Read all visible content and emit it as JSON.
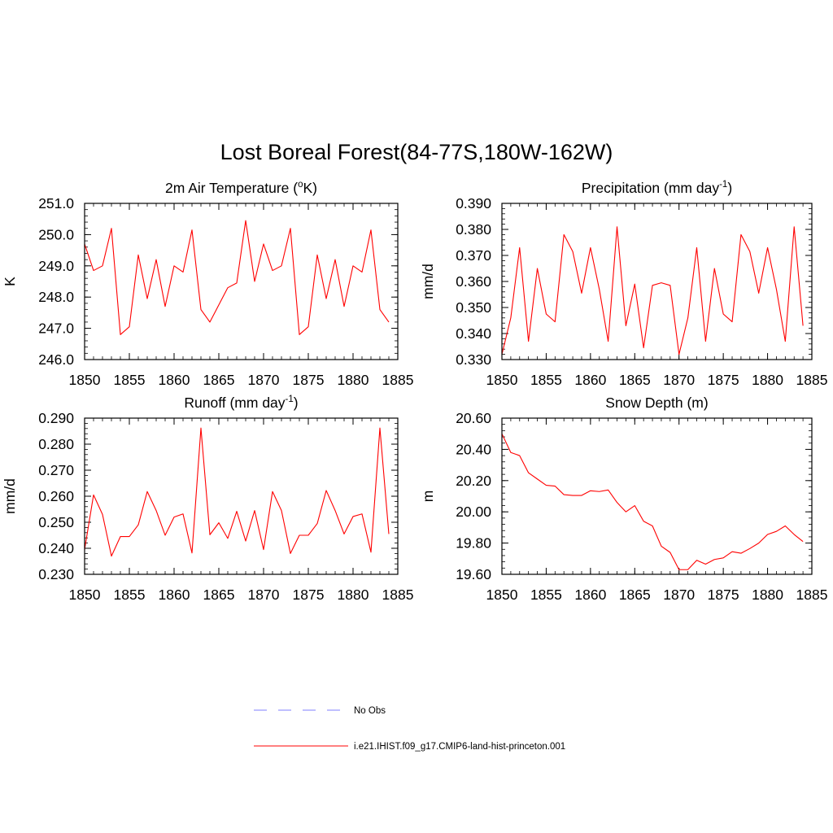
{
  "figure": {
    "title": "Lost Boreal Forest(84-77S,180W-162W)",
    "line_color": "#ff0000",
    "obs_color": "#9999ff"
  },
  "legend": {
    "obs_label": "No Obs",
    "model_label": "i.e21.IHIST.f09_g17.CMIP6-land-hist-princeton.001"
  },
  "chart_data": [
    {
      "type": "line",
      "panel": "top-left",
      "title_text": "2m Air Temperature (",
      "title_sup": "o",
      "title_tail": "K)",
      "ylabel": "K",
      "xlim": [
        1850,
        1885
      ],
      "ylim": [
        246.0,
        251.0
      ],
      "x_ticks": [
        1850,
        1855,
        1860,
        1865,
        1870,
        1875,
        1880,
        1885
      ],
      "x_tick_labels": [
        "1850",
        "1855",
        "1860",
        "1865",
        "1870",
        "1875",
        "1880",
        "1885"
      ],
      "y_ticks": [
        246.0,
        247.0,
        248.0,
        249.0,
        250.0,
        251.0
      ],
      "y_tick_labels": [
        "246.0",
        "247.0",
        "248.0",
        "249.0",
        "250.0",
        "251.0"
      ],
      "x": [
        1850,
        1851,
        1852,
        1853,
        1854,
        1855,
        1856,
        1857,
        1858,
        1859,
        1860,
        1861,
        1862,
        1863,
        1864,
        1865,
        1866,
        1867,
        1868,
        1869,
        1870,
        1871,
        1872,
        1873,
        1874,
        1875,
        1876,
        1877,
        1878,
        1879,
        1880,
        1881,
        1882,
        1883,
        1884
      ],
      "y": [
        249.7,
        248.85,
        249.0,
        250.2,
        246.8,
        247.05,
        249.35,
        247.95,
        249.2,
        247.7,
        249.0,
        248.8,
        250.15,
        247.6,
        247.2,
        247.75,
        248.3,
        248.45,
        250.45,
        248.5,
        249.7,
        248.85,
        249.0,
        250.2,
        246.8,
        247.05,
        249.35,
        247.95,
        249.2,
        247.7,
        249.0,
        248.8,
        250.15,
        247.6,
        247.2
      ]
    },
    {
      "type": "line",
      "panel": "top-right",
      "title_text": "Precipitation (mm day",
      "title_sup": "-1",
      "title_tail": ")",
      "ylabel": "mm/d",
      "xlim": [
        1850,
        1885
      ],
      "ylim": [
        0.33,
        0.39
      ],
      "x_ticks": [
        1850,
        1855,
        1860,
        1865,
        1870,
        1875,
        1880,
        1885
      ],
      "x_tick_labels": [
        "1850",
        "1855",
        "1860",
        "1865",
        "1870",
        "1875",
        "1880",
        "1885"
      ],
      "y_ticks": [
        0.33,
        0.34,
        0.35,
        0.36,
        0.37,
        0.38,
        0.39
      ],
      "y_tick_labels": [
        "0.330",
        "0.340",
        "0.350",
        "0.360",
        "0.370",
        "0.380",
        "0.390"
      ],
      "x": [
        1850,
        1851,
        1852,
        1853,
        1854,
        1855,
        1856,
        1857,
        1858,
        1859,
        1860,
        1861,
        1862,
        1863,
        1864,
        1865,
        1866,
        1867,
        1868,
        1869,
        1870,
        1871,
        1872,
        1873,
        1874,
        1875,
        1876,
        1877,
        1878,
        1879,
        1880,
        1881,
        1882,
        1883,
        1884
      ],
      "y": [
        0.332,
        0.346,
        0.373,
        0.337,
        0.365,
        0.3475,
        0.3445,
        0.378,
        0.3715,
        0.3555,
        0.373,
        0.357,
        0.337,
        0.381,
        0.343,
        0.359,
        0.3345,
        0.3585,
        0.3595,
        0.3585,
        0.332,
        0.346,
        0.373,
        0.337,
        0.365,
        0.3475,
        0.3445,
        0.378,
        0.3715,
        0.3555,
        0.373,
        0.357,
        0.337,
        0.381,
        0.343
      ]
    },
    {
      "type": "line",
      "panel": "bottom-left",
      "title_text": "Runoff (mm day",
      "title_sup": "-1",
      "title_tail": ")",
      "ylabel": "mm/d",
      "xlim": [
        1850,
        1885
      ],
      "ylim": [
        0.23,
        0.29
      ],
      "x_ticks": [
        1850,
        1855,
        1860,
        1865,
        1870,
        1875,
        1880,
        1885
      ],
      "x_tick_labels": [
        "1850",
        "1855",
        "1860",
        "1865",
        "1870",
        "1875",
        "1880",
        "1885"
      ],
      "y_ticks": [
        0.23,
        0.24,
        0.25,
        0.26,
        0.27,
        0.28,
        0.29
      ],
      "y_tick_labels": [
        "0.230",
        "0.240",
        "0.250",
        "0.260",
        "0.270",
        "0.280",
        "0.290"
      ],
      "x": [
        1850,
        1851,
        1852,
        1853,
        1854,
        1855,
        1856,
        1857,
        1858,
        1859,
        1860,
        1861,
        1862,
        1863,
        1864,
        1865,
        1866,
        1867,
        1868,
        1869,
        1870,
        1871,
        1872,
        1873,
        1874,
        1875,
        1876,
        1877,
        1878,
        1879,
        1880,
        1881,
        1882,
        1883,
        1884
      ],
      "y": [
        0.2395,
        0.2605,
        0.253,
        0.237,
        0.2445,
        0.2445,
        0.249,
        0.2618,
        0.2545,
        0.245,
        0.252,
        0.2532,
        0.2382,
        0.2862,
        0.2452,
        0.2498,
        0.2438,
        0.2542,
        0.2428,
        0.2545,
        0.2395,
        0.2618,
        0.2545,
        0.238,
        0.245,
        0.245,
        0.2495,
        0.2622,
        0.2545,
        0.2455,
        0.2522,
        0.2532,
        0.2385,
        0.2862,
        0.2455
      ]
    },
    {
      "type": "line",
      "panel": "bottom-right",
      "title_text": "Snow Depth (m)",
      "title_sup": "",
      "title_tail": "",
      "ylabel": "m",
      "xlim": [
        1850,
        1885
      ],
      "ylim": [
        19.6,
        20.6
      ],
      "x_ticks": [
        1850,
        1855,
        1860,
        1865,
        1870,
        1875,
        1880,
        1885
      ],
      "x_tick_labels": [
        "1850",
        "1855",
        "1860",
        "1865",
        "1870",
        "1875",
        "1880",
        "1885"
      ],
      "y_ticks": [
        19.6,
        19.8,
        20.0,
        20.2,
        20.4,
        20.6
      ],
      "y_tick_labels": [
        "19.60",
        "19.80",
        "20.00",
        "20.20",
        "20.40",
        "20.60"
      ],
      "x": [
        1850,
        1851,
        1852,
        1853,
        1854,
        1855,
        1856,
        1857,
        1858,
        1859,
        1860,
        1861,
        1862,
        1863,
        1864,
        1865,
        1866,
        1867,
        1868,
        1869,
        1870,
        1871,
        1872,
        1873,
        1874,
        1875,
        1876,
        1877,
        1878,
        1879,
        1880,
        1881,
        1882,
        1883,
        1884
      ],
      "y": [
        20.5,
        20.38,
        20.36,
        20.25,
        20.21,
        20.17,
        20.165,
        20.11,
        20.105,
        20.105,
        20.135,
        20.13,
        20.14,
        20.06,
        20.0,
        20.04,
        19.94,
        19.91,
        19.78,
        19.74,
        19.63,
        19.63,
        19.69,
        19.665,
        19.695,
        19.705,
        19.745,
        19.735,
        19.765,
        19.8,
        19.855,
        19.875,
        19.91,
        19.855,
        19.81
      ]
    }
  ]
}
